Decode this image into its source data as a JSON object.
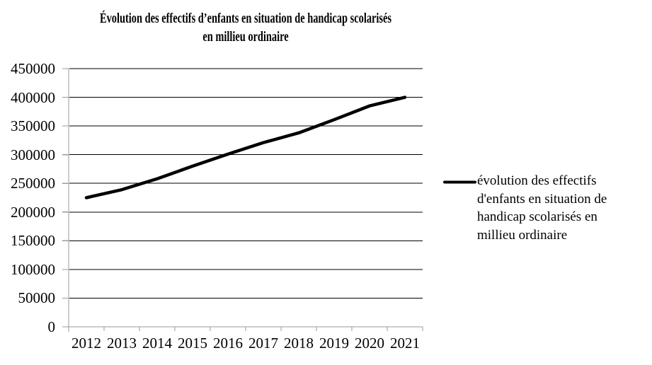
{
  "title": {
    "line1": "Évolution des effectifs d’enfants en situation de handicap scolarisés",
    "line2": "en millieu ordinaire"
  },
  "legend": {
    "lines": [
      "évolution des effectifs",
      "d'enfants en situation de",
      "handicap scolarisés en",
      "millieu ordinaire"
    ]
  },
  "colors": {
    "background": "#ffffff",
    "text": "#000000",
    "series": "#000000",
    "gridline": "#000000",
    "axis": "#999999"
  },
  "chart_data": {
    "type": "line",
    "title": "Évolution des effectifs d’enfants en situation de handicap scolarisés en millieu ordinaire",
    "categories": [
      "2012",
      "2013",
      "2014",
      "2015",
      "2016",
      "2017",
      "2018",
      "2019",
      "2020",
      "2021"
    ],
    "series": [
      {
        "name": "évolution des effectifs d'enfants en situation de handicap scolarisés en millieu ordinaire",
        "values": [
          225000,
          239000,
          258000,
          280000,
          301000,
          321000,
          338000,
          361000,
          385000,
          400000
        ]
      }
    ],
    "xlabel": "",
    "ylabel": "",
    "ylim": [
      0,
      450000
    ],
    "y_ticks": [
      0,
      50000,
      100000,
      150000,
      200000,
      250000,
      300000,
      350000,
      400000,
      450000
    ],
    "grid": "horizontal",
    "legend_position": "right",
    "line_width": 4.5
  }
}
